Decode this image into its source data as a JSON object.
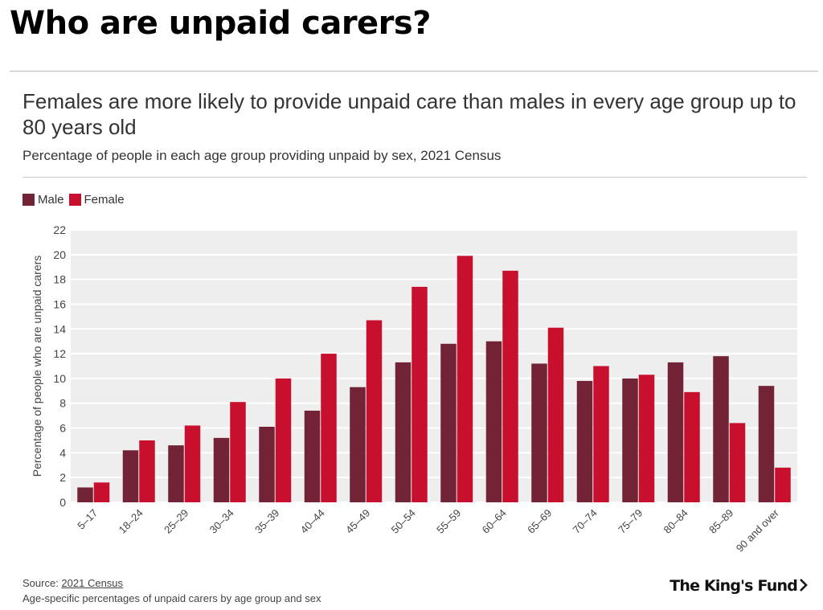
{
  "page": {
    "title": "Who are unpaid carers?",
    "headline": "Females are more likely to provide unpaid care than males in every age group up to 80 years old",
    "subtitle": "Percentage of people in each age group providing unpaid by sex, 2021 Census"
  },
  "footer": {
    "source_prefix": "Source: ",
    "source_link": "2021 Census",
    "note": "Age-specific percentages of unpaid carers by age group and sex"
  },
  "logo": {
    "text": "The King's Fund",
    "icon": "chevron-right-icon"
  },
  "colors": {
    "male": "#722335",
    "female": "#c8102e",
    "plot_bg": "#eeeeee",
    "grid": "#ffffff"
  },
  "chart_data": {
    "type": "bar",
    "title": "Females are more likely to provide unpaid care than males in every age group up to 80 years old",
    "subtitle": "Percentage of people in each age group providing unpaid by sex, 2021 Census",
    "xlabel": "",
    "ylabel": "Percentage of people who are unpaid carers",
    "ylim": [
      0,
      22
    ],
    "yticks": [
      0,
      2,
      4,
      6,
      8,
      10,
      12,
      14,
      16,
      18,
      20,
      22
    ],
    "grid": true,
    "legend_position": "top-left",
    "categories": [
      "5–17",
      "18–24",
      "25–29",
      "30–34",
      "35–39",
      "40–44",
      "45–49",
      "50–54",
      "55–59",
      "60–64",
      "65–69",
      "70–74",
      "75–79",
      "80–84",
      "85–89",
      "90 and over"
    ],
    "series": [
      {
        "name": "Male",
        "color": "#722335",
        "values": [
          1.2,
          4.2,
          4.6,
          5.2,
          6.1,
          7.4,
          9.3,
          11.3,
          12.8,
          13.0,
          11.2,
          9.8,
          10.0,
          11.3,
          11.8,
          9.4
        ]
      },
      {
        "name": "Female",
        "color": "#c8102e",
        "values": [
          1.6,
          5.0,
          6.2,
          8.1,
          10.0,
          12.0,
          14.7,
          17.4,
          19.9,
          18.7,
          14.1,
          11.0,
          10.3,
          8.9,
          6.4,
          2.8
        ]
      }
    ]
  }
}
